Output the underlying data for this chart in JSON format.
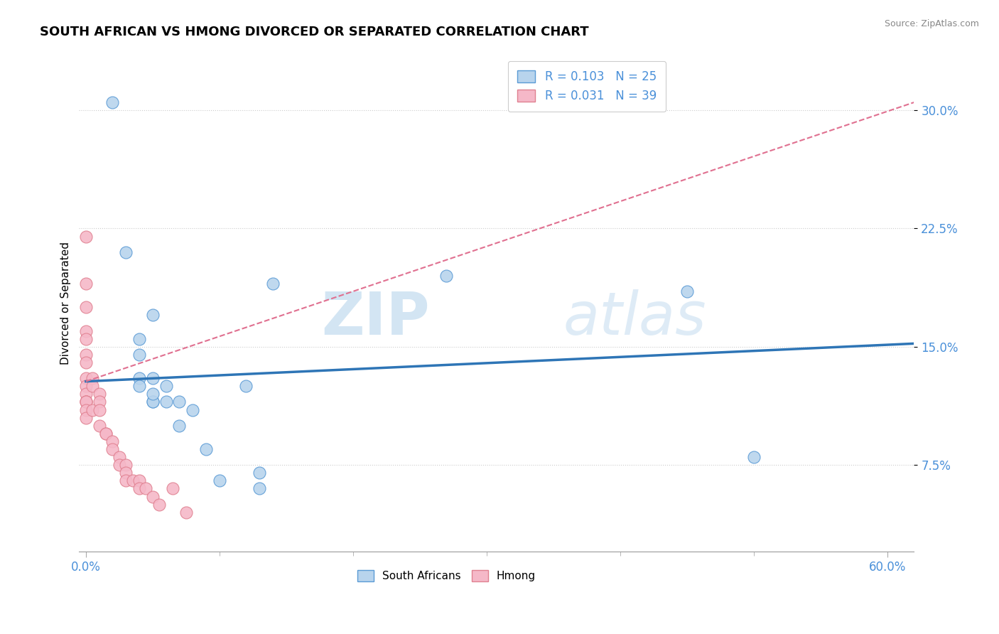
{
  "title": "SOUTH AFRICAN VS HMONG DIVORCED OR SEPARATED CORRELATION CHART",
  "source": "Source: ZipAtlas.com",
  "ylabel": "Divorced or Separated",
  "xlabel_ticks_left": "0.0%",
  "xlabel_ticks_right": "60.0%",
  "ytick_labels": [
    "7.5%",
    "15.0%",
    "22.5%",
    "30.0%"
  ],
  "ytick_vals": [
    0.075,
    0.15,
    0.225,
    0.3
  ],
  "xlim": [
    -0.005,
    0.62
  ],
  "ylim": [
    0.02,
    0.335
  ],
  "sa_R": 0.103,
  "sa_N": 25,
  "hmong_R": 0.031,
  "hmong_N": 39,
  "sa_color": "#b8d4ed",
  "hmong_color": "#f5b8c8",
  "sa_edge_color": "#5b9bd5",
  "hmong_edge_color": "#e08090",
  "sa_line_color": "#2e75b6",
  "hmong_line_color": "#e07090",
  "legend_label_sa": "R = 0.103   N = 25",
  "legend_label_hmong": "R = 0.031   N = 39",
  "watermark_zip": "ZIP",
  "watermark_atlas": "atlas",
  "sa_x": [
    0.02,
    0.03,
    0.04,
    0.04,
    0.04,
    0.04,
    0.05,
    0.05,
    0.05,
    0.05,
    0.05,
    0.06,
    0.06,
    0.07,
    0.07,
    0.08,
    0.09,
    0.1,
    0.12,
    0.13,
    0.13,
    0.14,
    0.27,
    0.45,
    0.5
  ],
  "sa_y": [
    0.305,
    0.21,
    0.13,
    0.145,
    0.155,
    0.125,
    0.115,
    0.115,
    0.13,
    0.17,
    0.12,
    0.115,
    0.125,
    0.115,
    0.1,
    0.11,
    0.085,
    0.065,
    0.125,
    0.06,
    0.07,
    0.19,
    0.195,
    0.185,
    0.08
  ],
  "hmong_x": [
    0.0,
    0.0,
    0.0,
    0.0,
    0.0,
    0.0,
    0.0,
    0.0,
    0.0,
    0.0,
    0.0,
    0.0,
    0.0,
    0.0,
    0.0,
    0.005,
    0.005,
    0.005,
    0.01,
    0.01,
    0.01,
    0.01,
    0.015,
    0.015,
    0.02,
    0.02,
    0.025,
    0.025,
    0.03,
    0.03,
    0.03,
    0.035,
    0.04,
    0.04,
    0.045,
    0.05,
    0.055,
    0.065,
    0.075
  ],
  "hmong_y": [
    0.22,
    0.19,
    0.175,
    0.16,
    0.155,
    0.145,
    0.14,
    0.13,
    0.125,
    0.12,
    0.115,
    0.115,
    0.115,
    0.11,
    0.105,
    0.13,
    0.125,
    0.11,
    0.12,
    0.115,
    0.11,
    0.1,
    0.095,
    0.095,
    0.09,
    0.085,
    0.08,
    0.075,
    0.075,
    0.07,
    0.065,
    0.065,
    0.065,
    0.06,
    0.06,
    0.055,
    0.05,
    0.06,
    0.045
  ],
  "sa_line_x0": 0.0,
  "sa_line_y0": 0.128,
  "sa_line_x1": 0.62,
  "sa_line_y1": 0.152,
  "hmong_line_x0": 0.0,
  "hmong_line_y0": 0.128,
  "hmong_line_x1": 0.62,
  "hmong_line_y1": 0.305
}
